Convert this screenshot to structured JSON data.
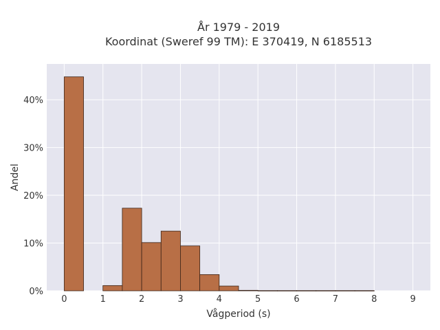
{
  "chart_data": {
    "type": "bar",
    "title": "År 1979 - 2019",
    "subtitle": "Koordinat (Sweref 99 TM): E 370419, N 6185513",
    "xlabel": "Vågperiod (s)",
    "ylabel": "Andel",
    "bin_width": 0.5,
    "bins": [
      {
        "x0": 0.0,
        "x1": 0.5,
        "value": 44.8
      },
      {
        "x0": 0.5,
        "x1": 1.0,
        "value": 0
      },
      {
        "x0": 1.0,
        "x1": 1.5,
        "value": 1.1
      },
      {
        "x0": 1.5,
        "x1": 2.0,
        "value": 17.3
      },
      {
        "x0": 2.0,
        "x1": 2.5,
        "value": 10.1
      },
      {
        "x0": 2.5,
        "x1": 3.0,
        "value": 12.5
      },
      {
        "x0": 3.0,
        "x1": 3.5,
        "value": 9.4
      },
      {
        "x0": 3.5,
        "x1": 4.0,
        "value": 3.4
      },
      {
        "x0": 4.0,
        "x1": 4.5,
        "value": 1.0
      },
      {
        "x0": 4.5,
        "x1": 5.0,
        "value": 0.1
      },
      {
        "x0": 5.0,
        "x1": 5.5,
        "value": 0.05
      },
      {
        "x0": 5.5,
        "x1": 6.0,
        "value": 0.05
      },
      {
        "x0": 6.0,
        "x1": 6.5,
        "value": 0.05
      },
      {
        "x0": 6.5,
        "x1": 7.0,
        "value": 0.05
      },
      {
        "x0": 7.0,
        "x1": 7.5,
        "value": 0.05
      },
      {
        "x0": 7.5,
        "x1": 8.0,
        "value": 0.05
      }
    ],
    "xlim": [
      -0.45,
      9.45
    ],
    "ylim": [
      0,
      47.5
    ],
    "xticks": [
      0,
      1,
      2,
      3,
      4,
      5,
      6,
      7,
      8,
      9
    ],
    "yticks": [
      0,
      10,
      20,
      30,
      40
    ],
    "ytick_labels": [
      "0%",
      "10%",
      "20%",
      "30%",
      "40%"
    ],
    "grid": true,
    "colors": {
      "bar_fill": "#b86f46",
      "bar_stroke": "#3a2418",
      "plot_bg": "#e5e5ef",
      "grid": "#ffffff"
    }
  }
}
